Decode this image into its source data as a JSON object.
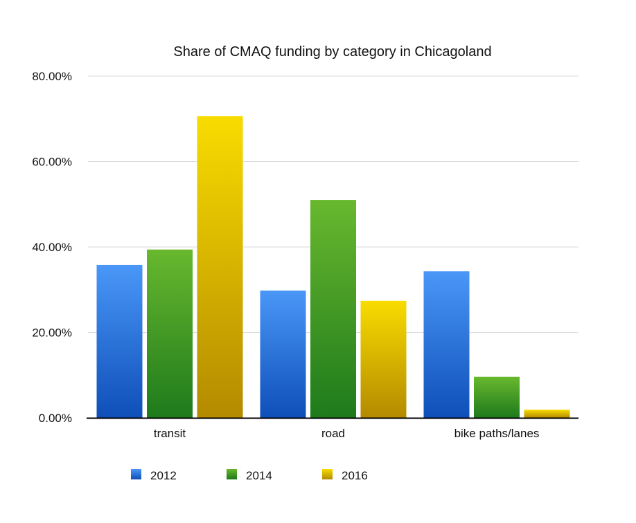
{
  "chart_data": {
    "type": "bar",
    "title": "Share of CMAQ funding by category in Chicagoland",
    "xlabel": "",
    "ylabel": "",
    "categories": [
      "transit",
      "road",
      "bike paths/lanes"
    ],
    "series": [
      {
        "name": "2012",
        "values": [
          35.8,
          29.8,
          34.3
        ],
        "color_top": "#4a97f8",
        "color_bottom": "#0e4fb8"
      },
      {
        "name": "2014",
        "values": [
          39.4,
          51.0,
          9.6
        ],
        "color_top": "#68b82e",
        "color_bottom": "#1e7a1c"
      },
      {
        "name": "2016",
        "values": [
          70.6,
          27.4,
          1.9
        ],
        "color_top": "#f8dc00",
        "color_bottom": "#b48a00"
      }
    ],
    "ylim": [
      0,
      80
    ],
    "yticks": [
      0,
      20,
      40,
      60,
      80
    ],
    "ytick_labels": [
      "0.00%",
      "20.00%",
      "40.00%",
      "60.00%",
      "80.00%"
    ],
    "grid": true,
    "legend_position": "bottom"
  }
}
